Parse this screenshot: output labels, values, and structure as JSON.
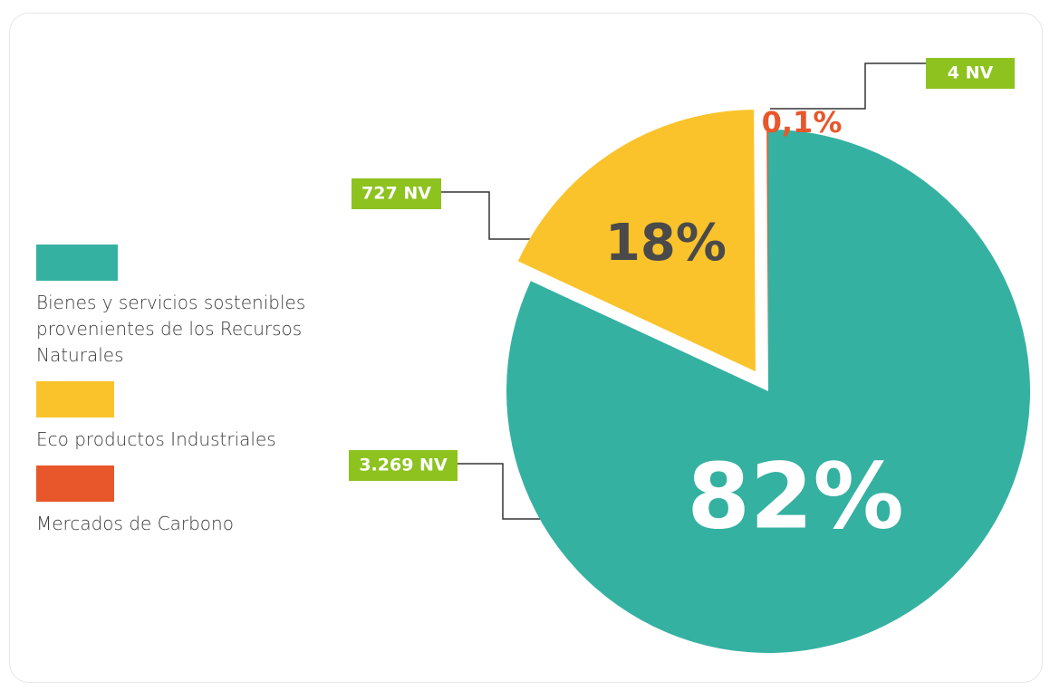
{
  "chart_data": {
    "type": "pie",
    "categories": [
      "Bienes y servicios sostenibles provenientes de los Recursos Naturales",
      "Eco productos Industriales",
      "Mercados de Carbono"
    ],
    "values": [
      82,
      18,
      0.1
    ],
    "value_labels": [
      "82%",
      "18%",
      "0,1%"
    ],
    "counts": [
      3269,
      727,
      4
    ],
    "count_labels": [
      "3.269 NV",
      "727 NV",
      "4 NV"
    ],
    "colors": [
      "#35b1a1",
      "#fbc32b",
      "#e8572b"
    ],
    "legend": "left"
  }
}
